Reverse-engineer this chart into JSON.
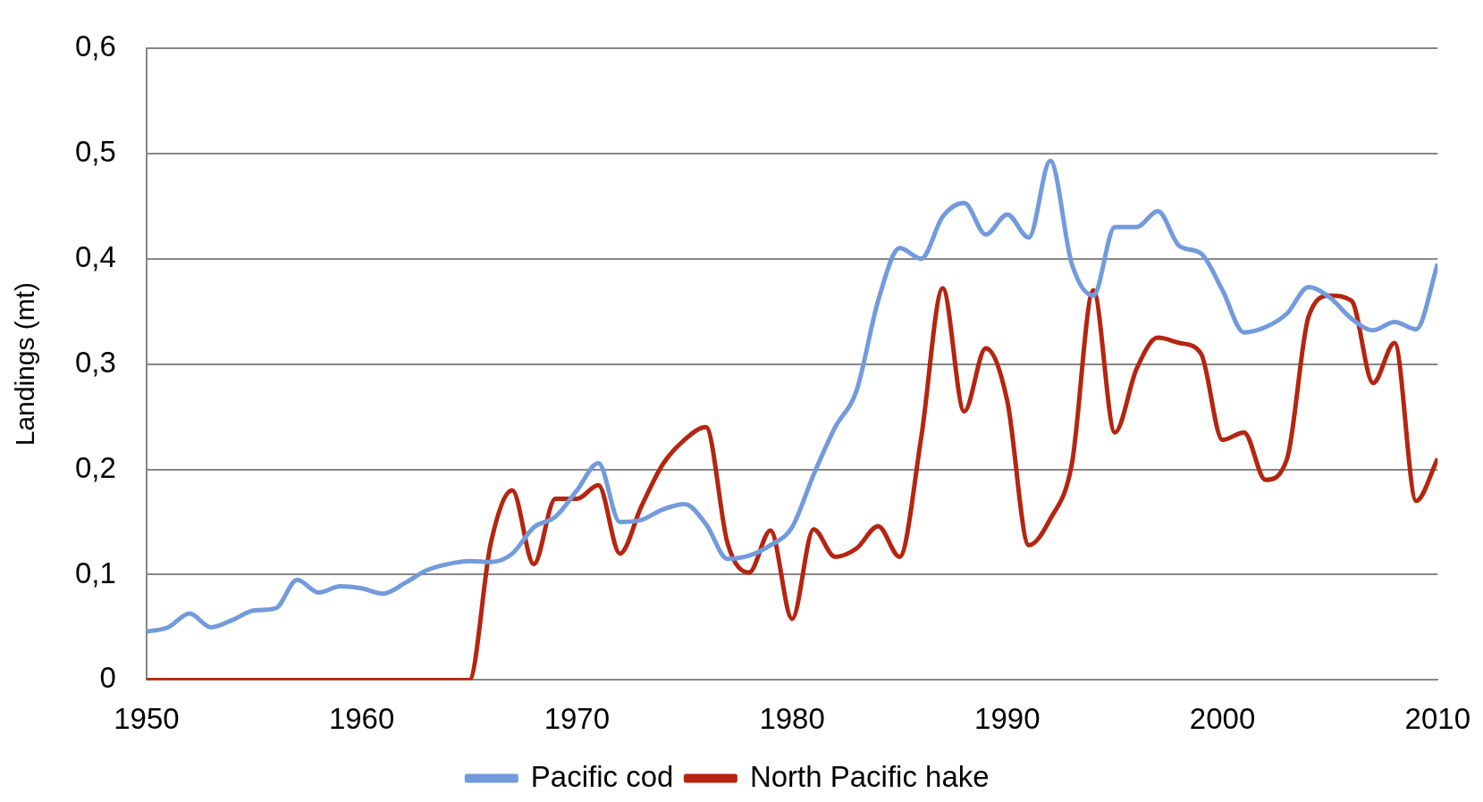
{
  "chart_data": {
    "type": "line",
    "ylabel": "Landings (mt)",
    "x": [
      1950,
      1951,
      1952,
      1953,
      1954,
      1955,
      1956,
      1957,
      1958,
      1959,
      1960,
      1961,
      1962,
      1963,
      1964,
      1965,
      1966,
      1967,
      1968,
      1969,
      1970,
      1971,
      1972,
      1973,
      1974,
      1975,
      1976,
      1977,
      1978,
      1979,
      1980,
      1981,
      1982,
      1983,
      1984,
      1985,
      1986,
      1987,
      1988,
      1989,
      1990,
      1991,
      1992,
      1993,
      1994,
      1995,
      1996,
      1997,
      1998,
      1999,
      2000,
      2001,
      2002,
      2003,
      2004,
      2005,
      2006,
      2007,
      2008,
      2009,
      2010
    ],
    "series": [
      {
        "name": "Pacific cod",
        "color": "#729bdc",
        "values": [
          0.046,
          0.05,
          0.063,
          0.05,
          0.057,
          0.066,
          0.068,
          0.095,
          0.083,
          0.089,
          0.087,
          0.082,
          0.092,
          0.104,
          0.11,
          0.113,
          0.112,
          0.12,
          0.145,
          0.155,
          0.18,
          0.206,
          0.15,
          0.152,
          0.162,
          0.167,
          0.148,
          0.115,
          0.118,
          0.128,
          0.145,
          0.195,
          0.24,
          0.275,
          0.36,
          0.41,
          0.4,
          0.44,
          0.453,
          0.423,
          0.442,
          0.42,
          0.493,
          0.395,
          0.365,
          0.43,
          0.43,
          0.445,
          0.412,
          0.405,
          0.37,
          0.33,
          0.335,
          0.348,
          0.373,
          0.363,
          0.343,
          0.332,
          0.34,
          0.333,
          0.395
        ]
      },
      {
        "name": "North Pacific hake",
        "color": "#b5250f",
        "values": [
          0,
          0,
          0,
          0,
          0,
          0,
          0,
          0,
          0,
          0,
          0,
          0,
          0,
          0,
          0,
          0,
          0.13,
          0.18,
          0.11,
          0.172,
          0.172,
          0.185,
          0.12,
          0.165,
          0.205,
          0.228,
          0.24,
          0.13,
          0.102,
          0.142,
          0.058,
          0.143,
          0.117,
          0.125,
          0.146,
          0.117,
          0.23,
          0.372,
          0.255,
          0.315,
          0.265,
          0.128,
          0.153,
          0.205,
          0.37,
          0.235,
          0.295,
          0.325,
          0.32,
          0.31,
          0.228,
          0.235,
          0.19,
          0.21,
          0.345,
          0.365,
          0.36,
          0.282,
          0.32,
          0.17,
          0.21
        ]
      }
    ],
    "xlim": [
      1950,
      2010
    ],
    "xticks": [
      1950,
      1960,
      1970,
      1980,
      1990,
      2000,
      2010
    ],
    "ylim": [
      0,
      0.6
    ],
    "yticks": [
      0,
      {
        "value": 0.1,
        "label": "0,1"
      },
      {
        "value": 0.2,
        "label": "0,2"
      },
      {
        "value": 0.3,
        "label": "0,3"
      },
      {
        "value": 0.4,
        "label": "0,4"
      },
      {
        "value": 0.5,
        "label": "0,5"
      },
      {
        "value": 0.6,
        "label": "0,6"
      }
    ],
    "grid": "y",
    "legend": "bottom",
    "marker": "none",
    "line_style": "solid"
  }
}
